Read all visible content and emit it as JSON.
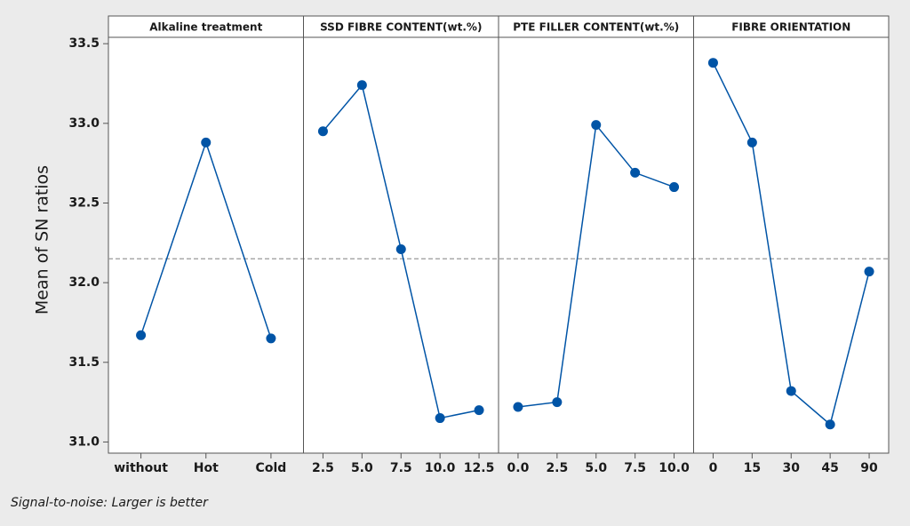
{
  "chart_data": {
    "type": "line",
    "ylabel": "Mean of SN ratios",
    "footnote": "Signal-to-noise: Larger is better",
    "ylim": [
      30.93,
      33.54
    ],
    "yticks": [
      {
        "value": 31,
        "label": "31.0"
      },
      31.5,
      {
        "value": 32,
        "label": "32.0"
      },
      32.5,
      {
        "value": 33,
        "label": "33.0"
      },
      33.5
    ],
    "reference_line": 32.15,
    "color": "#0054a6",
    "panels": [
      {
        "title": "Alkaline treatment",
        "categories": [
          "without",
          "Hot",
          "Cold"
        ],
        "values": [
          31.67,
          32.88,
          31.65
        ]
      },
      {
        "title": "SSD FIBRE CONTENT(wt.%)",
        "categories": [
          "2.5",
          "5.0",
          "7.5",
          "10.0",
          "12.5"
        ],
        "values": [
          32.95,
          33.24,
          32.21,
          31.15,
          31.2
        ]
      },
      {
        "title": "PTE FILLER CONTENT(wt.%)",
        "categories": [
          "0.0",
          "2.5",
          "5.0",
          "7.5",
          "10.0"
        ],
        "values": [
          31.22,
          31.25,
          32.99,
          32.69,
          32.6
        ]
      },
      {
        "title": "FIBRE ORIENTATION",
        "categories": [
          "0",
          "15",
          "30",
          "45",
          "90"
        ],
        "values": [
          33.38,
          32.88,
          31.32,
          31.11,
          32.07
        ]
      }
    ]
  }
}
